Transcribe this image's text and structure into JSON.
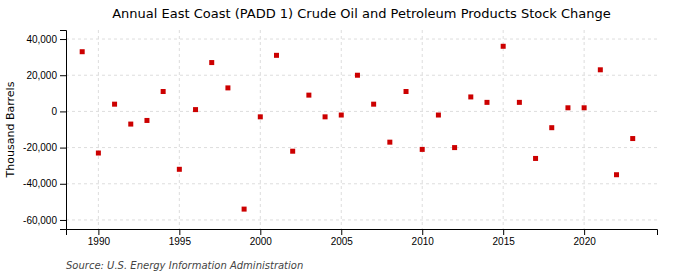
{
  "chart_data": {
    "type": "scatter",
    "title": "Annual East Coast (PADD 1) Crude Oil and Petroleum Products Stock Change",
    "y_label": "Thousand Barrels",
    "annotations": [
      "Source: U.S. Energy Information Administration"
    ],
    "x": [
      1989,
      1990,
      1991,
      1992,
      1993,
      1994,
      1995,
      1996,
      1997,
      1998,
      1999,
      2000,
      2001,
      2002,
      2003,
      2004,
      2005,
      2006,
      2007,
      2008,
      2009,
      2010,
      2011,
      2012,
      2013,
      2014,
      2015,
      2016,
      2017,
      2018,
      2019,
      2020,
      2021,
      2022,
      2023
    ],
    "values": [
      33000,
      -23000,
      4000,
      -7000,
      -5000,
      11000,
      -32000,
      1000,
      27000,
      13000,
      -54000,
      -3000,
      31000,
      -22000,
      9000,
      -3000,
      -2000,
      20000,
      4000,
      -17000,
      11000,
      -21000,
      -2000,
      -20000,
      8000,
      5000,
      36000,
      5000,
      -26000,
      -9000,
      2000,
      2000,
      23000,
      -35000,
      -15000
    ],
    "color": "#cc0000",
    "marker": "square",
    "xlim": [
      1988.0,
      2024.5
    ],
    "ylim": [
      -65000,
      45000
    ],
    "xticks": [
      1990,
      1995,
      2000,
      2005,
      2010,
      2015,
      2020
    ],
    "yticks": [
      {
        "value": -60000,
        "label": "-60,000"
      },
      {
        "value": -40000,
        "label": "-40,000"
      },
      {
        "value": -20000,
        "label": "-20,000"
      },
      0,
      {
        "value": 20000,
        "label": "20,000"
      },
      {
        "value": 40000,
        "label": "40,000"
      }
    ],
    "grid": true
  }
}
